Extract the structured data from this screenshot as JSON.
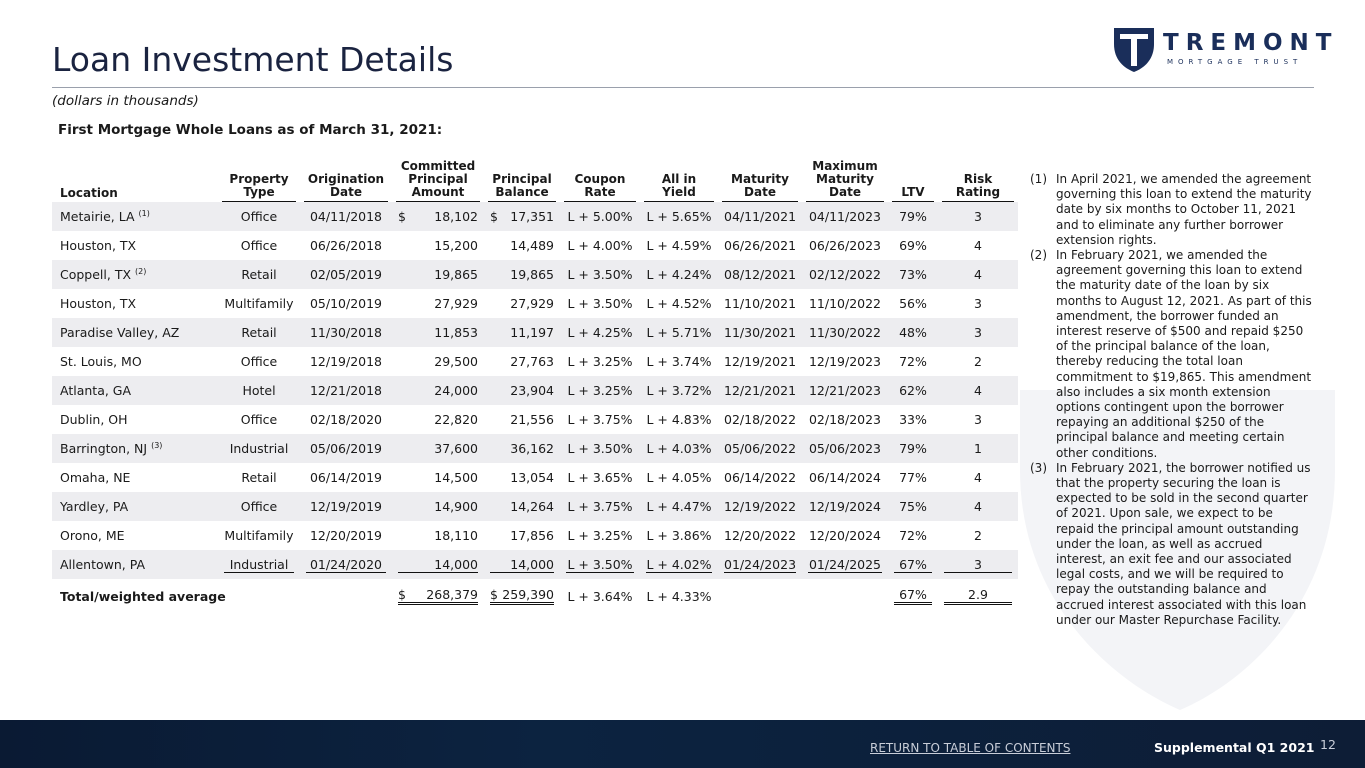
{
  "header": {
    "title": "Loan Investment Details",
    "subtitle": "(dollars in thousands)"
  },
  "logo": {
    "name": "TREMONT",
    "tagline": "MORTGAGE TRUST"
  },
  "table": {
    "caption": "First Mortgage Whole Loans as of March 31, 2021:",
    "columns": [
      "Location",
      "Property Type",
      "Origination Date",
      "Committed Principal Amount",
      "Principal Balance",
      "Coupon Rate",
      "All in Yield",
      "Maturity Date",
      "Maximum Maturity Date",
      "LTV",
      "Risk Rating"
    ],
    "rows": [
      {
        "location": "Metairie, LA",
        "note": "(1)",
        "currency": "$",
        "cells": [
          "Office",
          "04/11/2018",
          "18,102",
          "17,351",
          "L + 5.00%",
          "L + 5.65%",
          "04/11/2021",
          "04/11/2023",
          "79%",
          "3"
        ]
      },
      {
        "location": "Houston, TX",
        "cells": [
          "Office",
          "06/26/2018",
          "15,200",
          "14,489",
          "L + 4.00%",
          "L + 4.59%",
          "06/26/2021",
          "06/26/2023",
          "69%",
          "4"
        ]
      },
      {
        "location": "Coppell, TX",
        "note": "(2)",
        "cells": [
          "Retail",
          "02/05/2019",
          "19,865",
          "19,865",
          "L + 3.50%",
          "L + 4.24%",
          "08/12/2021",
          "02/12/2022",
          "73%",
          "4"
        ]
      },
      {
        "location": "Houston, TX",
        "cells": [
          "Multifamily",
          "05/10/2019",
          "27,929",
          "27,929",
          "L + 3.50%",
          "L + 4.52%",
          "11/10/2021",
          "11/10/2022",
          "56%",
          "3"
        ]
      },
      {
        "location": "Paradise Valley, AZ",
        "cells": [
          "Retail",
          "11/30/2018",
          "11,853",
          "11,197",
          "L + 4.25%",
          "L + 5.71%",
          "11/30/2021",
          "11/30/2022",
          "48%",
          "3"
        ]
      },
      {
        "location": "St. Louis, MO",
        "cells": [
          "Office",
          "12/19/2018",
          "29,500",
          "27,763",
          "L + 3.25%",
          "L + 3.74%",
          "12/19/2021",
          "12/19/2023",
          "72%",
          "2"
        ]
      },
      {
        "location": "Atlanta, GA",
        "cells": [
          "Hotel",
          "12/21/2018",
          "24,000",
          "23,904",
          "L + 3.25%",
          "L + 3.72%",
          "12/21/2021",
          "12/21/2023",
          "62%",
          "4"
        ]
      },
      {
        "location": "Dublin, OH",
        "cells": [
          "Office",
          "02/18/2020",
          "22,820",
          "21,556",
          "L + 3.75%",
          "L + 4.83%",
          "02/18/2022",
          "02/18/2023",
          "33%",
          "3"
        ]
      },
      {
        "location": "Barrington, NJ",
        "note": "(3)",
        "cells": [
          "Industrial",
          "05/06/2019",
          "37,600",
          "36,162",
          "L + 3.50%",
          "L + 4.03%",
          "05/06/2022",
          "05/06/2023",
          "79%",
          "1"
        ]
      },
      {
        "location": "Omaha, NE",
        "cells": [
          "Retail",
          "06/14/2019",
          "14,500",
          "13,054",
          "L + 3.65%",
          "L + 4.05%",
          "06/14/2022",
          "06/14/2024",
          "77%",
          "4"
        ]
      },
      {
        "location": "Yardley, PA",
        "cells": [
          "Office",
          "12/19/2019",
          "14,900",
          "14,264",
          "L + 3.75%",
          "L + 4.47%",
          "12/19/2022",
          "12/19/2024",
          "75%",
          "4"
        ]
      },
      {
        "location": "Orono, ME",
        "cells": [
          "Multifamily",
          "12/20/2019",
          "18,110",
          "17,856",
          "L + 3.25%",
          "L + 3.86%",
          "12/20/2022",
          "12/20/2024",
          "72%",
          "2"
        ]
      },
      {
        "location": "Allentown, PA",
        "cells": [
          "Industrial",
          "01/24/2020",
          "14,000",
          "14,000",
          "L + 3.50%",
          "L + 4.02%",
          "01/24/2023",
          "01/24/2025",
          "67%",
          "3"
        ]
      }
    ],
    "total": {
      "label": "Total/weighted average",
      "currency": "$",
      "committed": "268,379",
      "principal": "259,390",
      "coupon": "L + 3.64%",
      "yield": "L + 4.33%",
      "ltv": "67%",
      "risk": "2.9"
    }
  },
  "footnotes": [
    {
      "marker": "(1)",
      "text": "In April 2021, we amended the agreement governing this loan to extend the maturity date by six months to October 11, 2021 and to eliminate any further borrower extension rights."
    },
    {
      "marker": "(2)",
      "text": "In February 2021, we amended the agreement governing this loan to extend the maturity date of the loan by six months to August 12, 2021. As part of this amendment, the borrower funded an interest reserve of $500 and repaid $250 of the principal balance of the loan, thereby reducing the total loan commitment to $19,865. This amendment also includes a six month extension options contingent upon the borrower repaying an additional $250 of the principal balance and meeting certain other conditions."
    },
    {
      "marker": "(3)",
      "text": "In February 2021, the borrower notified us that the property securing the loan is expected to be sold in the second quarter of 2021. Upon sale, we expect to be repaid the principal amount outstanding under the loan, as well as accrued interest, an exit fee and our associated legal costs, and we will be required to repay the outstanding balance and accrued interest associated with this loan under our Master Repurchase Facility."
    }
  ],
  "footer": {
    "link": "RETURN TO TABLE OF CONTENTS",
    "label": "Supplemental Q1 2021",
    "page": "12"
  }
}
